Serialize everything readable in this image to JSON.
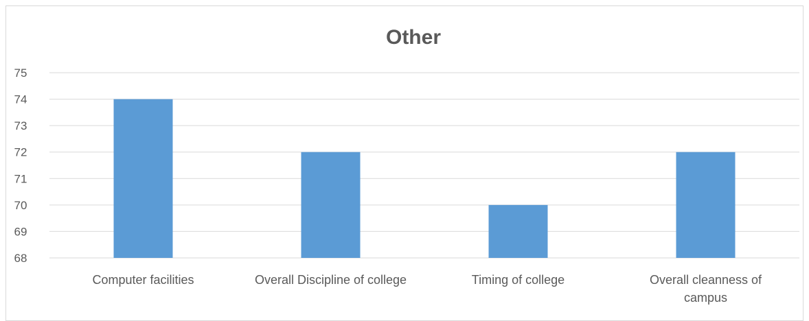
{
  "chart_data": {
    "type": "bar",
    "title": "Other",
    "categories": [
      [
        "Computer facilities"
      ],
      [
        "Overall Discipline of college"
      ],
      [
        "Timing of college"
      ],
      [
        "Overall cleanness of",
        "campus"
      ]
    ],
    "values": [
      74,
      72,
      70,
      72
    ],
    "ylim": [
      68,
      75
    ],
    "yticks": [
      68,
      69,
      70,
      71,
      72,
      73,
      74,
      75
    ],
    "grid": true,
    "legend": "none",
    "bar_color": "#5b9bd5",
    "grid_color": "#d9d9d9",
    "text_color": "#595959"
  }
}
